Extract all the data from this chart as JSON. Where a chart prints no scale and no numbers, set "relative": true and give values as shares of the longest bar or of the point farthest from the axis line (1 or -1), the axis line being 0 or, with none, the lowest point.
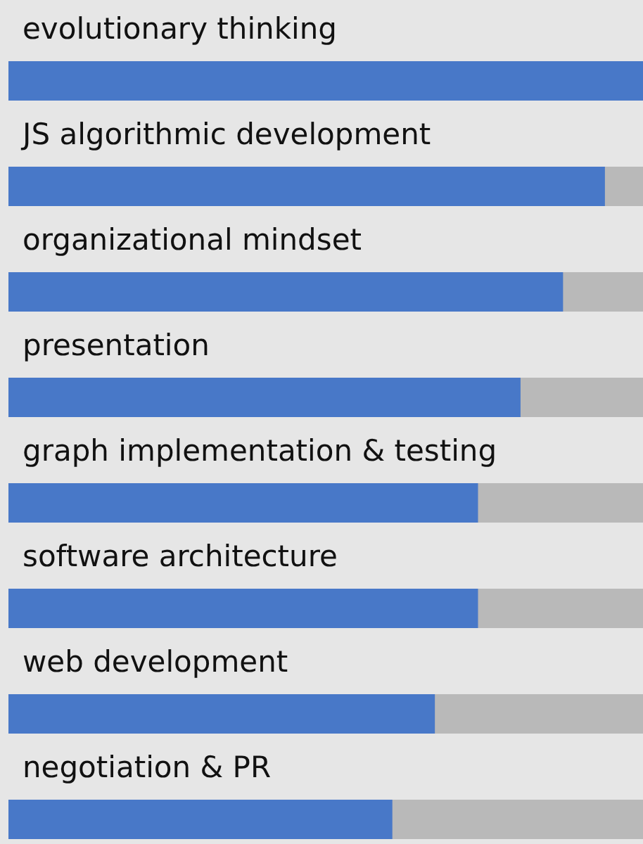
{
  "chart_data": {
    "type": "bar",
    "orientation": "horizontal",
    "relative": true,
    "categories": [
      "evolutionary thinking",
      "JS algorithmic development",
      "organizational mindset",
      "presentation",
      "graph implementation & testing",
      "software architecture",
      "web development",
      "negotiation & PR"
    ],
    "values": [
      1,
      0.94,
      0.874,
      0.807,
      0.74,
      0.74,
      0.672,
      0.605
    ],
    "color": "#4878c8"
  }
}
